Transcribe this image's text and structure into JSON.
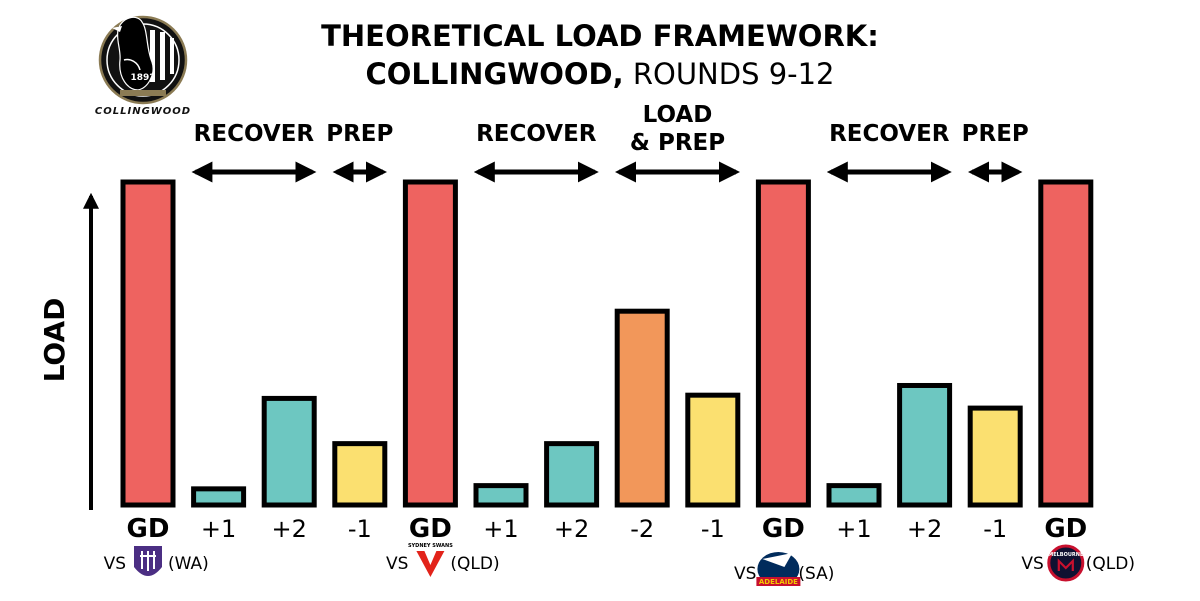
{
  "title": {
    "line1": "THEORETICAL LOAD FRAMEWORK:",
    "line2_bold": "COLLINGWOOD,",
    "line2_rest": " ROUNDS 9-12"
  },
  "team_logo": {
    "icon": "magpie-crest-icon",
    "year": "1892",
    "name": "COLLINGWOOD"
  },
  "phases": [
    {
      "label": "RECOVER"
    },
    {
      "label": "PREP"
    },
    {
      "label": "RECOVER"
    },
    {
      "label_line1": "LOAD",
      "label_line2": "& PREP"
    },
    {
      "label": "RECOVER"
    },
    {
      "label": "PREP"
    }
  ],
  "opponents": [
    {
      "vs": "VS",
      "state": "(WA)",
      "icon": "fremantle-logo-icon",
      "color": "#4B2E83"
    },
    {
      "vs": "VS",
      "state": "(QLD)",
      "icon": "sydney-swans-logo-icon",
      "color": "#E2231A",
      "logo_text": "SYDNEY SWANS"
    },
    {
      "vs": "VS",
      "state": "(SA)",
      "icon": "adelaide-crows-logo-icon",
      "color": "#002B5C",
      "logo_text": "ADELAIDE"
    },
    {
      "vs": "VS",
      "state": "(QLD)",
      "icon": "melbourne-logo-icon",
      "color": "#0F1131",
      "logo_text": "MELBOURNE"
    }
  ],
  "colors": {
    "game_day": "#EE6360",
    "recovery": "#6DC7C1",
    "prep": "#FBE070",
    "load": "#F2975A",
    "outline": "#000000"
  },
  "chart_data": {
    "type": "bar",
    "ylabel": "LOAD",
    "categories": [
      "GD",
      "+1",
      "+2",
      "-1",
      "GD",
      "+1",
      "+2",
      "-2",
      "-1",
      "GD",
      "+1",
      "+2",
      "-1",
      "GD"
    ],
    "values": [
      100,
      5,
      33,
      19,
      100,
      6,
      19,
      60,
      34,
      100,
      6,
      37,
      30,
      100
    ],
    "bar_types": [
      "game_day",
      "recovery",
      "recovery",
      "prep",
      "game_day",
      "recovery",
      "recovery",
      "load",
      "prep",
      "game_day",
      "recovery",
      "recovery",
      "prep",
      "game_day"
    ],
    "ylim": [
      0,
      100
    ],
    "grid": false,
    "legend": "none"
  }
}
